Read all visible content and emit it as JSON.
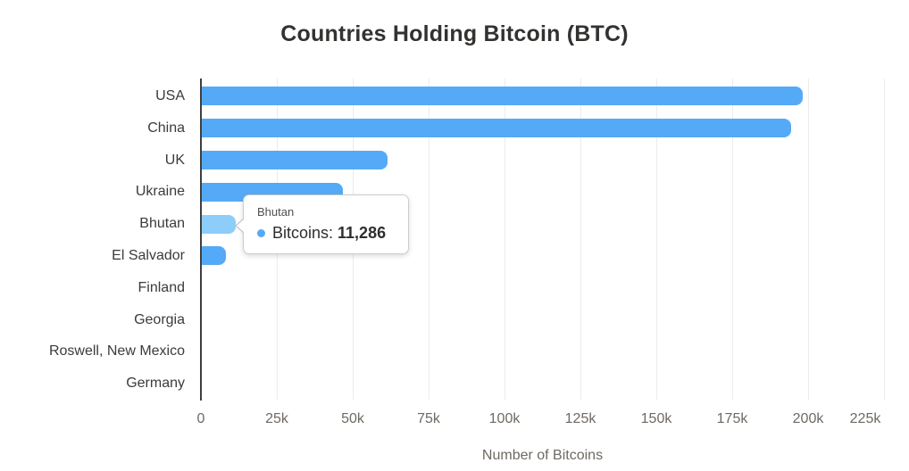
{
  "chart_data": {
    "type": "bar",
    "orientation": "horizontal",
    "title": "Countries Holding Bitcoin (BTC)",
    "xlabel": "Number of Bitcoins",
    "categories": [
      "USA",
      "China",
      "UK",
      "Ukraine",
      "Bhutan",
      "El Salvador",
      "Finland",
      "Georgia",
      "Roswell, New Mexico",
      "Germany"
    ],
    "values": [
      198012,
      194000,
      61245,
      46351,
      11286,
      8000,
      0,
      0,
      0,
      0
    ],
    "xlim": [
      0,
      225000
    ],
    "xticks": [
      {
        "value": 0,
        "label": "0"
      },
      {
        "value": 25000,
        "label": "25k"
      },
      {
        "value": 50000,
        "label": "50k"
      },
      {
        "value": 75000,
        "label": "75k"
      },
      {
        "value": 100000,
        "label": "100k"
      },
      {
        "value": 125000,
        "label": "125k"
      },
      {
        "value": 150000,
        "label": "150k"
      },
      {
        "value": 175000,
        "label": "175k"
      },
      {
        "value": 200000,
        "label": "200k"
      },
      {
        "value": 225000,
        "label": "225k"
      }
    ],
    "grid": true,
    "legend": "none",
    "bar_color": "#55aaf7",
    "highlight_color": "#8ccdfa",
    "highlighted_category": "Bhutan",
    "gridline_color": "#ececec",
    "axis_line_color": "#3f3f3f"
  },
  "tooltip": {
    "title": "Bhutan",
    "series_label": "Bitcoins:",
    "value": "11,286",
    "dot_color": "#55aaf7"
  }
}
